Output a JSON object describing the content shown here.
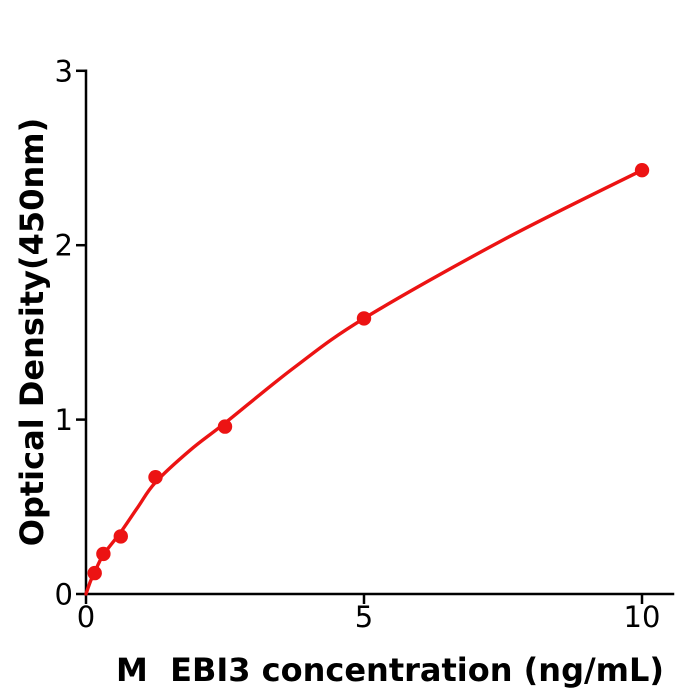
{
  "figure": {
    "background": "#ffffff",
    "axis_color": "#000000",
    "accent_red": "#ec1313"
  },
  "chart_data": {
    "type": "scatter",
    "title": "",
    "xlabel": "M  EBI3 concentration (ng/mL)",
    "ylabel": "Optical Density(450nm)",
    "xlim": [
      0,
      10.56
    ],
    "ylim": [
      0,
      3
    ],
    "x_ticks": [
      0,
      5,
      10
    ],
    "y_ticks": [
      0,
      1,
      2,
      3
    ],
    "grid": false,
    "legend": "none",
    "series": [
      {
        "name": "standard-points",
        "kind": "scatter",
        "color": "#ec1313",
        "x": [
          0.15625,
          0.3125,
          0.625,
          1.25,
          2.5,
          5,
          10
        ],
        "y": [
          0.12,
          0.23,
          0.33,
          0.67,
          0.96,
          1.58,
          2.43
        ]
      },
      {
        "name": "fitted-curve",
        "kind": "line",
        "color": "#ec1313",
        "anchors": [
          [
            0,
            0
          ],
          [
            0.08,
            0.072
          ],
          [
            0.156,
            0.125
          ],
          [
            0.3125,
            0.225
          ],
          [
            0.625,
            0.355
          ],
          [
            0.9375,
            0.5
          ],
          [
            1.25,
            0.64
          ],
          [
            1.875,
            0.825
          ],
          [
            2.5,
            0.98
          ],
          [
            3.75,
            1.3
          ],
          [
            5,
            1.58
          ],
          [
            7.5,
            2.03
          ],
          [
            10,
            2.43
          ]
        ]
      }
    ]
  }
}
